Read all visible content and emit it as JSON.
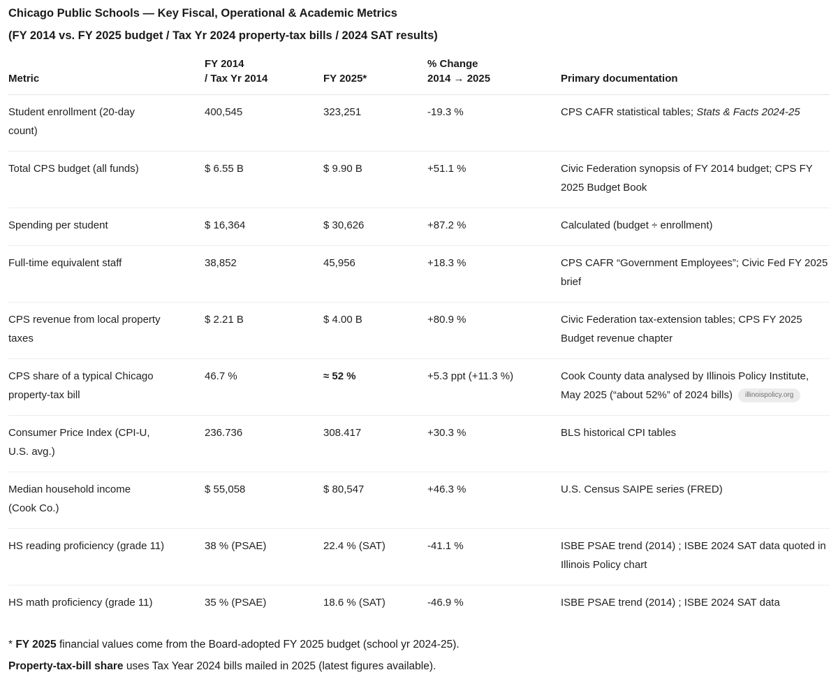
{
  "header": {
    "title": "Chicago Public Schools — Key Fiscal, Operational & Academic Metrics",
    "subtitle": "(FY 2014 vs. FY 2025 budget / Tax Yr 2024 property-tax bills / 2024 SAT results)"
  },
  "table": {
    "columns": [
      {
        "label": "Metric"
      },
      {
        "label": "FY 2014\n/ Tax Yr 2014"
      },
      {
        "label": "FY 2025*"
      },
      {
        "label": "% Change\n2014 → 2025"
      },
      {
        "label": "Primary documentation"
      }
    ],
    "rows": [
      {
        "metric": "Student enrollment (20-day\ncount)",
        "fy2014": "400,545",
        "fy2025": "323,251",
        "change": "-19.3 %",
        "doc_parts": [
          {
            "text": "CPS CAFR statistical tables; "
          },
          {
            "text": "Stats & Facts 2024-25",
            "italic": true
          }
        ]
      },
      {
        "metric": "Total CPS budget (all funds)",
        "fy2014": "$ 6.55 B",
        "fy2025": "$ 9.90 B",
        "change": "+51.1 %",
        "doc_parts": [
          {
            "text": "Civic Federation synopsis of FY 2014 budget; CPS FY 2025 Budget Book"
          }
        ]
      },
      {
        "metric": "Spending per student",
        "fy2014": "$ 16,364",
        "fy2025": "$ 30,626",
        "change": "+87.2 %",
        "doc_parts": [
          {
            "text": "Calculated (budget ÷ enrollment)"
          }
        ]
      },
      {
        "metric": "Full-time equivalent staff",
        "fy2014": "38,852",
        "fy2025": "45,956",
        "change": "+18.3 %",
        "doc_parts": [
          {
            "text": "CPS CAFR “Government Employees”; Civic Fed FY 2025 brief"
          }
        ]
      },
      {
        "metric": "CPS revenue from local property\ntaxes",
        "fy2014": "$ 2.21 B",
        "fy2025": "$ 4.00 B",
        "change": "+80.9 %",
        "doc_parts": [
          {
            "text": "Civic Federation tax-extension tables; CPS FY 2025 Budget revenue chapter"
          }
        ]
      },
      {
        "metric": "CPS share of a typical Chicago\nproperty-tax bill",
        "fy2014": "46.7 %",
        "fy2025": "≈ 52 %",
        "fy2025_bold": true,
        "change": "+5.3 ppt (+11.3 %)",
        "doc_parts": [
          {
            "text": "Cook County data analysed by Illinois Policy Institute, May 2025 (“about 52%” of 2024 bills)"
          },
          {
            "text": "illinoispolicy.org",
            "badge": true
          }
        ]
      },
      {
        "metric": "Consumer Price Index (CPI-U,\nU.S. avg.)",
        "fy2014": "236.736",
        "fy2025": "308.417",
        "change": "+30.3 %",
        "doc_parts": [
          {
            "text": "BLS historical CPI tables"
          }
        ]
      },
      {
        "metric": "Median household income\n(Cook Co.)",
        "fy2014": "$ 55,058",
        "fy2025": "$ 80,547",
        "change": "+46.3 %",
        "doc_parts": [
          {
            "text": "U.S. Census SAIPE series (FRED)"
          }
        ]
      },
      {
        "metric": "HS reading proficiency (grade 11)",
        "fy2014": "38 % (PSAE)",
        "fy2025": "22.4 % (SAT)",
        "change": "-41.1 %",
        "doc_parts": [
          {
            "text": "ISBE PSAE trend (2014) ; ISBE 2024 SAT data quoted in Illinois Policy chart"
          }
        ]
      },
      {
        "metric": "HS math proficiency (grade 11)",
        "fy2014": "35 % (PSAE)",
        "fy2025": "18.6 % (SAT)",
        "change": "-46.9 %",
        "doc_parts": [
          {
            "text": "ISBE PSAE trend (2014) ; ISBE 2024 SAT data"
          }
        ]
      }
    ]
  },
  "footnotes": [
    {
      "parts": [
        {
          "text": "* "
        },
        {
          "text": "FY 2025",
          "bold": true
        },
        {
          "text": " financial values come from the Board-adopted FY 2025 budget (school yr 2024-25)."
        }
      ]
    },
    {
      "parts": [
        {
          "text": "Property-tax-bill share",
          "bold": true
        },
        {
          "text": " uses Tax Year 2024 bills mailed in 2025 (latest figures available)."
        }
      ]
    }
  ],
  "colors": {
    "text": "#1f1f1f",
    "divider": "#ededed",
    "header_divider": "#e3e3e3",
    "badge_bg": "#ececec",
    "badge_text": "#6f6f6f"
  }
}
